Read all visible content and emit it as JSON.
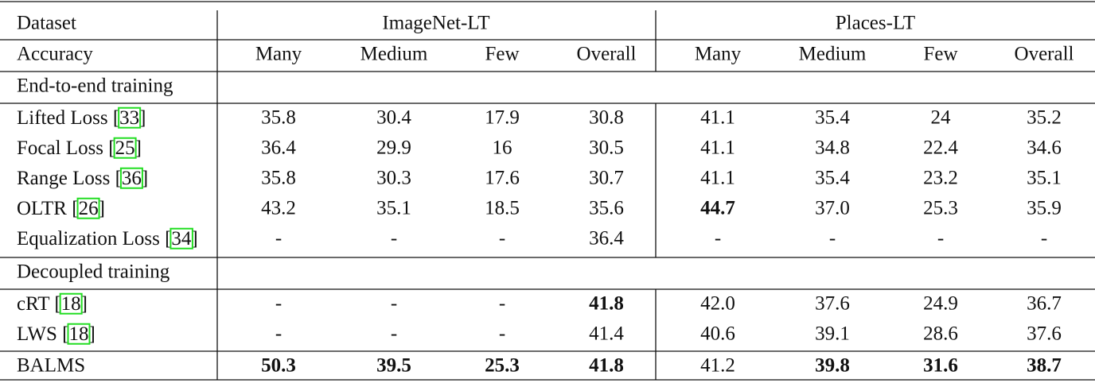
{
  "header": {
    "dataset_label": "Dataset",
    "groups": [
      "ImageNet-LT",
      "Places-LT"
    ],
    "metric_label": "Accuracy",
    "columns": [
      "Many",
      "Medium",
      "Few",
      "Overall",
      "Many",
      "Medium",
      "Few",
      "Overall"
    ]
  },
  "sections": [
    {
      "title": "End-to-end training",
      "rows": [
        {
          "method": {
            "name": "Lifted Loss [",
            "cite": "33",
            "end": "]"
          },
          "cells": [
            "35.8",
            "30.4",
            "17.9",
            "30.8",
            "41.1",
            "35.4",
            "24",
            "35.2"
          ],
          "bold": []
        },
        {
          "method": {
            "name": "Focal Loss [",
            "cite": "25",
            "end": "]"
          },
          "cells": [
            "36.4",
            "29.9",
            "16",
            "30.5",
            "41.1",
            "34.8",
            "22.4",
            "34.6"
          ],
          "bold": []
        },
        {
          "method": {
            "name": "Range Loss [",
            "cite": "36",
            "end": "]"
          },
          "cells": [
            "35.8",
            "30.3",
            "17.6",
            "30.7",
            "41.1",
            "35.4",
            "23.2",
            "35.1"
          ],
          "bold": []
        },
        {
          "method": {
            "name": "OLTR [",
            "cite": "26",
            "end": "]"
          },
          "cells": [
            "43.2",
            "35.1",
            "18.5",
            "35.6",
            "44.7",
            "37.0",
            "25.3",
            "35.9"
          ],
          "bold": [
            4
          ]
        },
        {
          "method": {
            "name": "Equalization Loss [",
            "cite": "34",
            "end": "]"
          },
          "cells": [
            "-",
            "-",
            "-",
            "36.4",
            "-",
            "-",
            "-",
            "-"
          ],
          "bold": []
        }
      ]
    },
    {
      "title": "Decoupled training",
      "rows": [
        {
          "method": {
            "name": "cRT [",
            "cite": "18",
            "end": "]"
          },
          "cells": [
            "-",
            "-",
            "-",
            "41.8",
            "42.0",
            "37.6",
            "24.9",
            "36.7"
          ],
          "bold": [
            3
          ]
        },
        {
          "method": {
            "name": "LWS [",
            "cite": "18",
            "end": "]"
          },
          "cells": [
            "-",
            "-",
            "-",
            "41.4",
            "40.6",
            "39.1",
            "28.6",
            "37.6"
          ],
          "bold": []
        }
      ]
    }
  ],
  "final_row": {
    "method": "BALMS",
    "cells": [
      "50.3",
      "39.5",
      "25.3",
      "41.8",
      "41.2",
      "39.8",
      "31.6",
      "38.7"
    ],
    "bold": [
      0,
      1,
      2,
      3,
      5,
      6,
      7
    ]
  }
}
